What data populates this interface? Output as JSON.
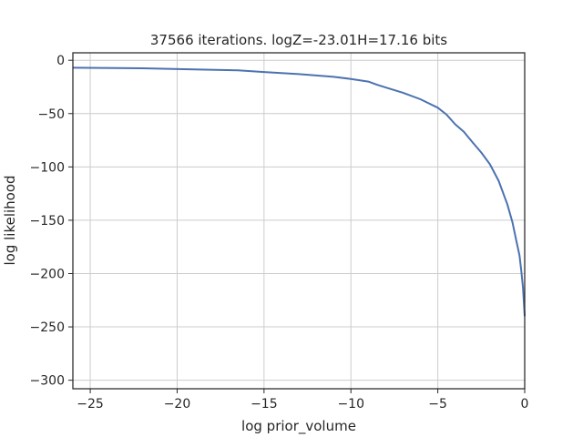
{
  "chart_data": {
    "type": "line",
    "title": "37566 iterations. logZ=-23.01H=17.16 bits",
    "xlabel": "log prior_volume",
    "ylabel": "log likelihood",
    "xlim": [
      -26,
      0
    ],
    "ylim": [
      -308,
      7
    ],
    "xticks": [
      -25,
      -20,
      -15,
      -10,
      -5,
      0
    ],
    "xtick_labels": [
      "−25",
      "−20",
      "−15",
      "−10",
      "−5",
      "0"
    ],
    "yticks": [
      0,
      -50,
      -100,
      -150,
      -200,
      -250,
      -300
    ],
    "ytick_labels": [
      "0",
      "−50",
      "−100",
      "−150",
      "−200",
      "−250",
      "−300"
    ],
    "grid": true,
    "colors": {
      "line": "#4c72b0",
      "grid": "#cccccc",
      "axes": "#262626"
    },
    "series": [
      {
        "x": [
          -26,
          -22,
          -19,
          -16.5,
          -15,
          -13,
          -11,
          -10,
          -9,
          -8.5,
          -8,
          -7,
          -6,
          -5,
          -4.5,
          -4,
          -3.5,
          -3,
          -2.5,
          -2,
          -1.5,
          -1,
          -0.7,
          -0.5,
          -0.3,
          -0.2,
          -0.1,
          0
        ],
        "y": [
          -7,
          -7.5,
          -8.5,
          -9.5,
          -11,
          -13,
          -15.5,
          -17.5,
          -20,
          -23,
          -25.5,
          -30.5,
          -36.5,
          -44.5,
          -51,
          -60,
          -67,
          -77,
          -86.5,
          -97.5,
          -113,
          -135,
          -152,
          -168,
          -183,
          -197,
          -213,
          -240
        ]
      }
    ]
  }
}
